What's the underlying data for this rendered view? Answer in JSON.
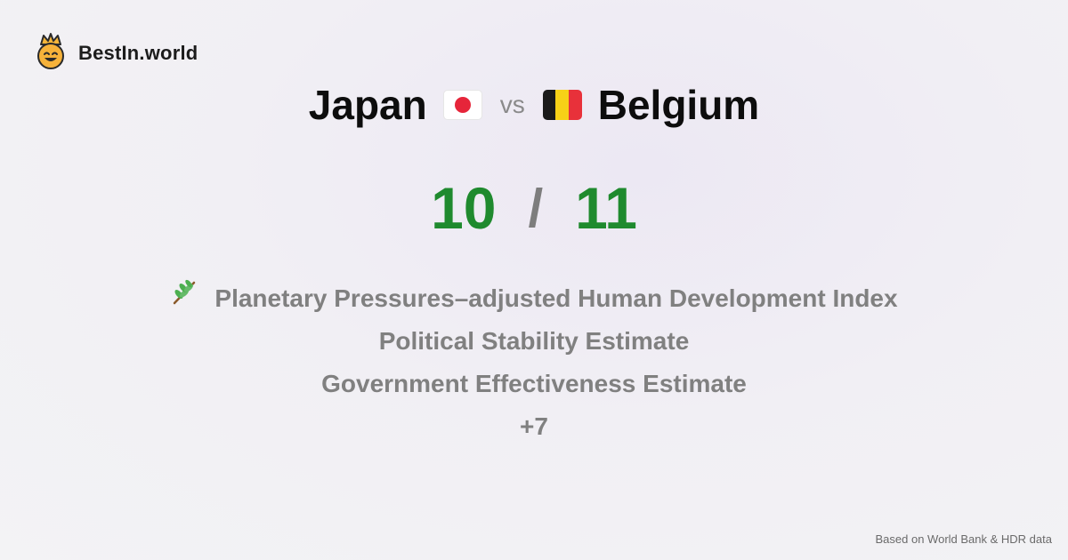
{
  "brand": {
    "name": "BestIn.world",
    "logo_icon": "smiling-crown-face-icon"
  },
  "comparison": {
    "left": {
      "name": "Japan",
      "flag": "japan-flag-icon",
      "score": "10"
    },
    "separator": "vs",
    "right": {
      "name": "Belgium",
      "flag": "belgium-flag-icon",
      "score": "11"
    },
    "score_separator": "/"
  },
  "metrics": [
    {
      "label": "Planetary Pressures–adjusted Human Development Index",
      "icon": "plant-branch-icon"
    },
    {
      "label": "Political Stability Estimate"
    },
    {
      "label": "Government Effectiveness Estimate"
    },
    {
      "label": "+7"
    }
  ],
  "footer": {
    "source": "Based on World Bank & HDR data"
  },
  "colors": {
    "score_green": "#1f8a2e",
    "muted_gray": "#808080",
    "japan_red": "#e6253a",
    "belgium_black": "#1a1a1a",
    "belgium_yellow": "#f7d117",
    "belgium_red": "#e8313a"
  }
}
